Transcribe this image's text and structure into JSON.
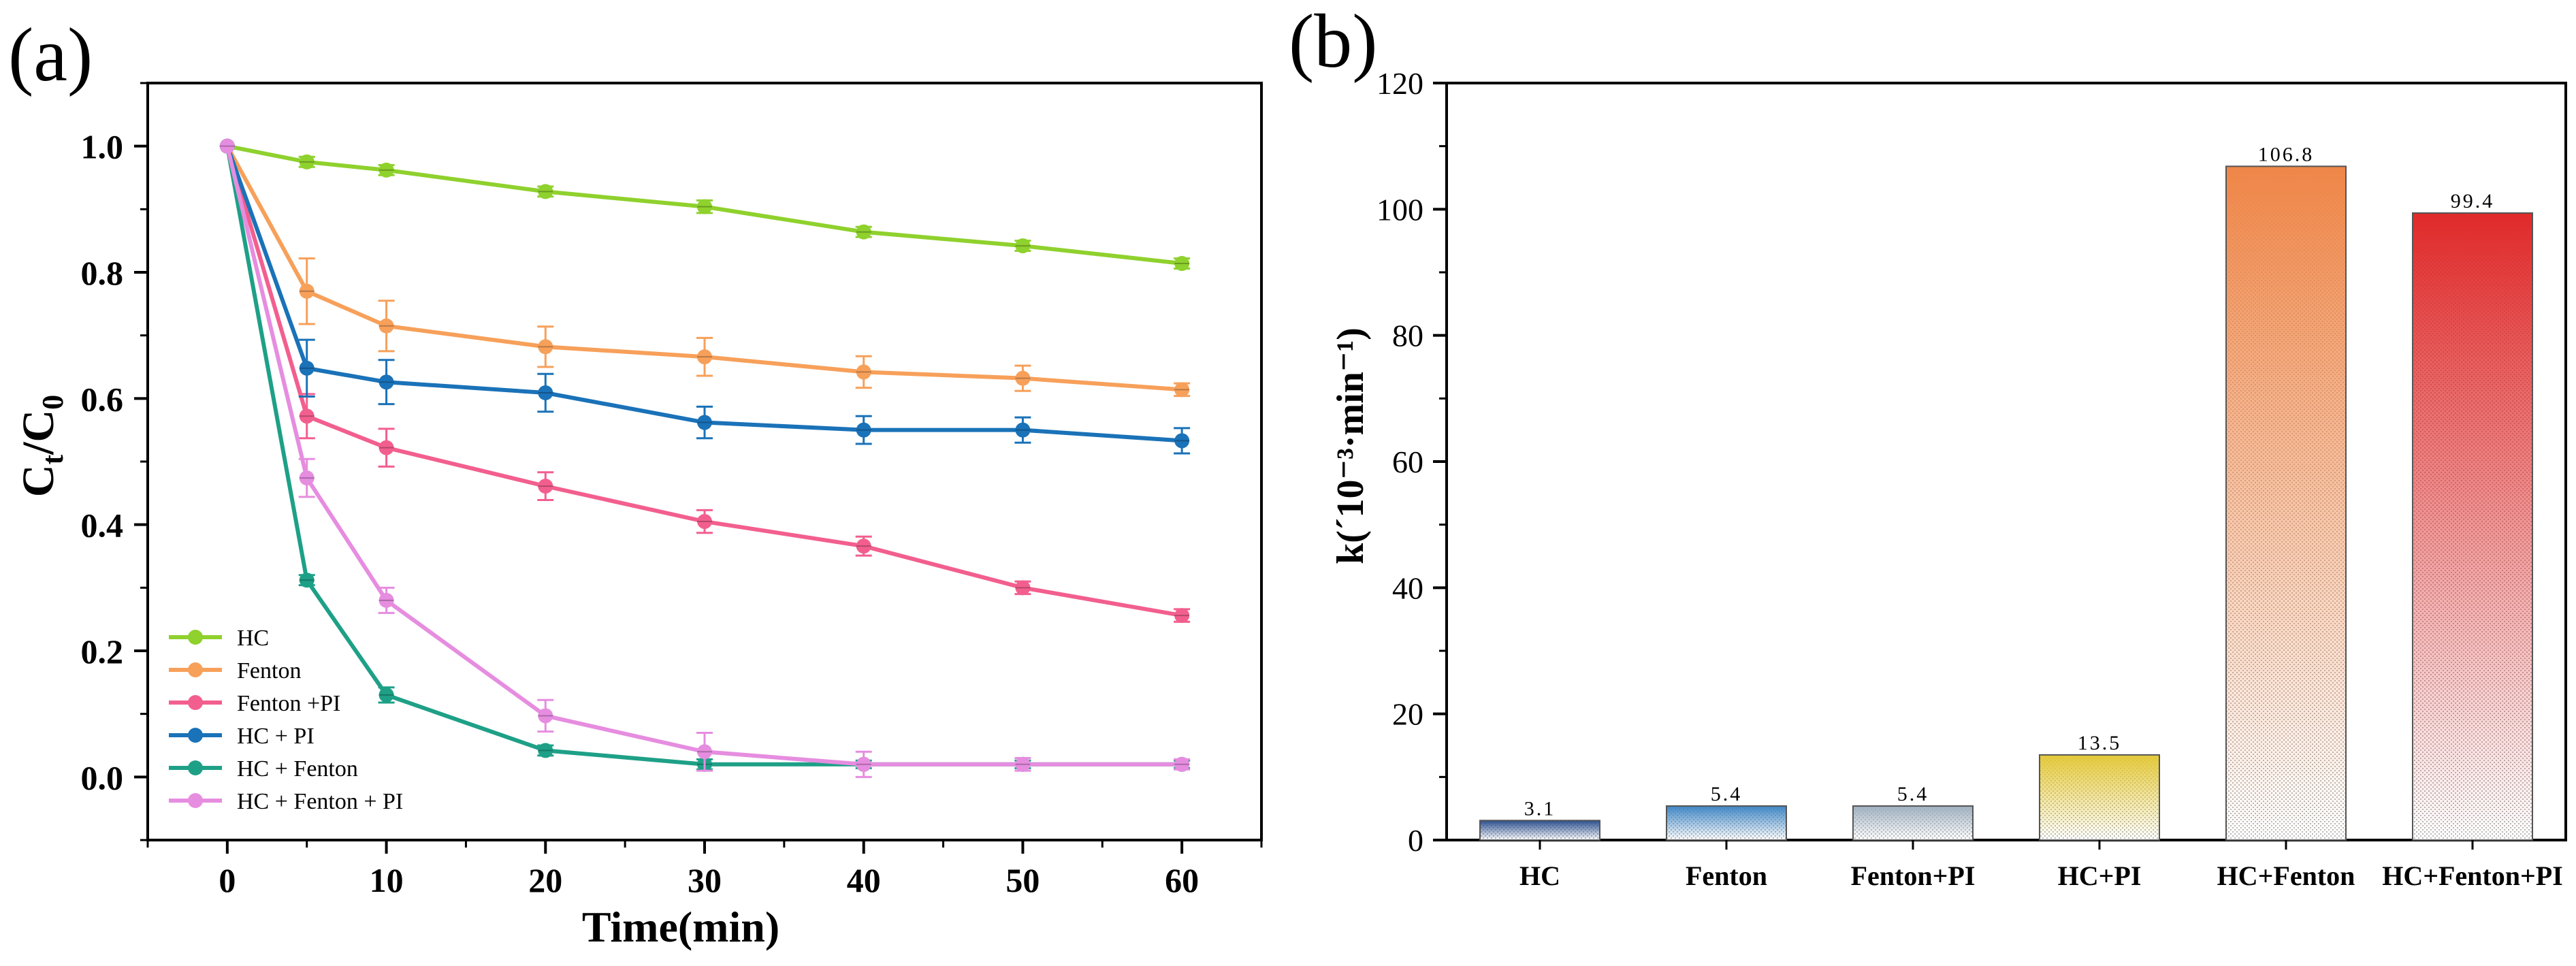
{
  "panel_labels": {
    "a": "(a)",
    "b": "(b)"
  },
  "chart_data": [
    {
      "type": "line",
      "panel": "(a)",
      "xlabel": "Time(min)",
      "ylabel_main": "C",
      "ylabel_sub1": "t",
      "ylabel_slash": "/C",
      "ylabel_sub2": "0",
      "xlim": [
        -5,
        65
      ],
      "ylim": [
        -0.1,
        1.1
      ],
      "xticks": [
        0,
        10,
        20,
        30,
        40,
        50,
        60
      ],
      "yticks": [
        0.0,
        0.2,
        0.4,
        0.6,
        0.8,
        1.0
      ],
      "ytick_labels": [
        "0.0",
        "0.2",
        "0.4",
        "0.6",
        "0.8",
        "1.0"
      ],
      "legend_position": "bottom-left",
      "x": [
        0,
        5,
        10,
        20,
        30,
        40,
        50,
        60
      ],
      "series": [
        {
          "name": "HC",
          "color": "#8fd12d",
          "values": [
            1.0,
            0.975,
            0.962,
            0.928,
            0.904,
            0.864,
            0.842,
            0.814
          ],
          "errors": [
            0,
            0.008,
            0.008,
            0.008,
            0.01,
            0.008,
            0.008,
            0.008
          ]
        },
        {
          "name": "Fenton",
          "color": "#f7a05a",
          "values": [
            1.0,
            0.77,
            0.715,
            0.682,
            0.666,
            0.642,
            0.632,
            0.614
          ],
          "errors": [
            0,
            0.052,
            0.04,
            0.032,
            0.03,
            0.025,
            0.02,
            0.01
          ]
        },
        {
          "name": "Fenton +PI",
          "color": "#f25f8e",
          "values": [
            1.0,
            0.572,
            0.522,
            0.461,
            0.405,
            0.366,
            0.3,
            0.256
          ],
          "errors": [
            0,
            0.035,
            0.03,
            0.022,
            0.018,
            0.015,
            0.01,
            0.01
          ]
        },
        {
          "name": "HC + PI",
          "color": "#1a72b8",
          "values": [
            1.0,
            0.648,
            0.626,
            0.609,
            0.562,
            0.55,
            0.55,
            0.533
          ],
          "errors": [
            0,
            0.045,
            0.035,
            0.03,
            0.025,
            0.022,
            0.02,
            0.02
          ]
        },
        {
          "name": "HC + Fenton",
          "color": "#1ea087",
          "values": [
            1.0,
            0.312,
            0.13,
            0.042,
            0.02,
            0.02,
            0.02,
            0.02
          ],
          "errors": [
            0,
            0.008,
            0.012,
            0.008,
            0.008,
            0.006,
            0.006,
            0.006
          ]
        },
        {
          "name": "HC + Fenton + PI",
          "color": "#e68de0",
          "values": [
            1.0,
            0.474,
            0.28,
            0.097,
            0.04,
            0.02,
            0.02,
            0.02
          ],
          "errors": [
            0,
            0.03,
            0.02,
            0.025,
            0.03,
            0.02,
            0.01,
            0.008
          ]
        }
      ]
    },
    {
      "type": "bar",
      "panel": "(b)",
      "ylabel": "k(´10⁻³·min⁻¹)",
      "ylim": [
        0,
        120
      ],
      "yticks": [
        0,
        20,
        40,
        60,
        80,
        100,
        120
      ],
      "categories": [
        "HC",
        "Fenton",
        "Fenton+PI",
        "HC+PI",
        "HC+Fenton",
        "HC+Fenton+PI"
      ],
      "values": [
        3.1,
        5.4,
        5.4,
        13.5,
        106.8,
        99.4
      ],
      "value_labels": [
        "3.1",
        "5.4",
        "5.4",
        "13.5",
        "106.8",
        "99.4"
      ],
      "colors": [
        "#2c4f8f",
        "#3f86c4",
        "#9fb0bf",
        "#e3c83a",
        "#ef8648",
        "#e02a2a"
      ]
    }
  ]
}
